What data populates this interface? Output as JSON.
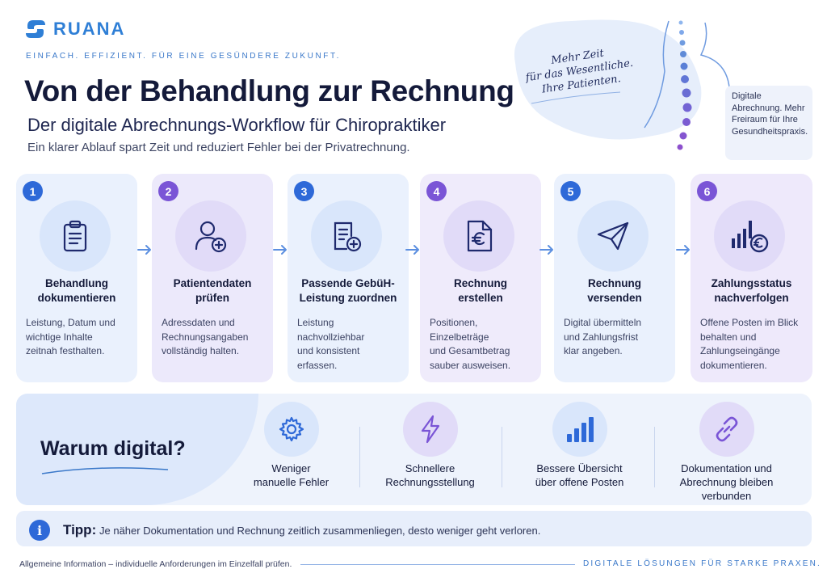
{
  "brand": {
    "name": "RUANA",
    "tagline": "EINFACH. EFFIZIENT. FÜR EINE GESÜNDERE ZUKUNFT."
  },
  "header": {
    "title": "Von der Behandlung zur Rechnung",
    "subtitle": "Der digitale Abrechnungs-Workflow für Chiropraktiker",
    "lead": "Ein klarer Ablauf spart Zeit und reduziert Fehler bei der Privatrechnung."
  },
  "handwritten": "Mehr Zeit\nfür das Wesentliche.\nIhre Patienten.",
  "sidecard": "Digitale Abrechnung. Mehr Freiraum für Ihre Gesundheitspraxis.",
  "steps": [
    {
      "number": "1",
      "title": "Behandlung\ndokumentieren",
      "desc": "Leistung, Datum und\nwichtige Inhalte\nzeitnah festhalten.",
      "icon": "clipboard-icon"
    },
    {
      "number": "2",
      "title": "Patientendaten\nprüfen",
      "desc": "Adressdaten und\nRechnungsangaben\nvollständig halten.",
      "icon": "user-add-icon"
    },
    {
      "number": "3",
      "title": "Passende GebüH-\nLeistung zuordnen",
      "desc": "Leistung nachvollziehbar\nund konsistent\nerfassen.",
      "icon": "document-add-icon"
    },
    {
      "number": "4",
      "title": "Rechnung\nerstellen",
      "desc": "Positionen, Einzelbeträge\nund Gesamtbetrag\nsauber ausweisen.",
      "icon": "euro-document-icon"
    },
    {
      "number": "5",
      "title": "Rechnung\nversenden",
      "desc": "Digital übermitteln\nund Zahlungsfrist\nklar angeben.",
      "icon": "paper-plane-icon"
    },
    {
      "number": "6",
      "title": "Zahlungsstatus\nnachverfolgen",
      "desc": "Offene Posten im Blick\nbehalten und\nZahlungseingänge\ndokumentieren.",
      "icon": "chart-euro-icon"
    }
  ],
  "why": {
    "title": "Warum digital?",
    "features": [
      {
        "label": "Weniger\nmanuelle Fehler",
        "icon": "gear-icon"
      },
      {
        "label": "Schnellere\nRechnungsstellung",
        "icon": "lightning-icon"
      },
      {
        "label": "Bessere Übersicht\nüber offene Posten",
        "icon": "bar-chart-icon"
      },
      {
        "label": "Dokumentation und\nAbrechnung bleiben\nverbunden",
        "icon": "link-icon"
      }
    ]
  },
  "tip": {
    "label": "Tipp:",
    "text": "Je näher Dokumentation und Rechnung zeitlich zusammenliegen, desto weniger geht verloren."
  },
  "footer": {
    "left": "Allgemeine Information – individuelle Anforderungen im Einzelfall prüfen.",
    "right": "DIGITALE LÖSUNGEN FÜR STARKE PRAXEN."
  },
  "colors": {
    "primary": "#2e69d8",
    "purple": "#7a55d6",
    "dark": "#141a3a"
  }
}
